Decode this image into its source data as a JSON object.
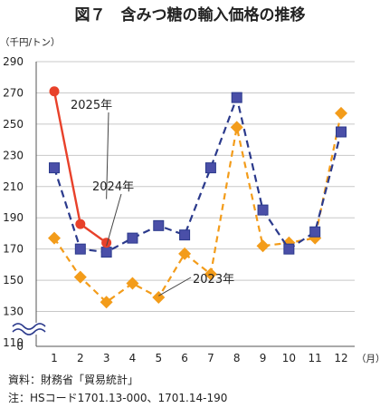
{
  "title": "図７　含みつ糖の輸入価格の推移",
  "source_note": "資料：財務省「貿易統計」",
  "remark_note": "注：HSコード1701.13-000、1701.14-190",
  "chart_data": {
    "type": "line",
    "title": "図７　含みつ糖の輸入価格の推移",
    "ylabel": "（千円/トン）",
    "xlabel": "（月）",
    "x": [
      1,
      2,
      3,
      4,
      5,
      6,
      7,
      8,
      9,
      10,
      11,
      12
    ],
    "x_tick_labels": [
      "1",
      "2",
      "3",
      "4",
      "5",
      "6",
      "7",
      "8",
      "9",
      "10",
      "11",
      "12"
    ],
    "y_tick_labels": [
      "0",
      "110",
      "130",
      "150",
      "170",
      "190",
      "210",
      "230",
      "250",
      "270",
      "290"
    ],
    "ylim": [
      110,
      290
    ],
    "y_axis_break": true,
    "grid": true,
    "series": [
      {
        "name": "2025年",
        "color": "#e8412a",
        "marker": "circle",
        "line": "solid",
        "values": [
          271,
          186,
          174,
          null,
          null,
          null,
          null,
          null,
          null,
          null,
          null,
          null
        ]
      },
      {
        "name": "2024年",
        "color": "#2b3a8c",
        "marker": "square",
        "line": "dashed",
        "values": [
          222,
          170,
          168,
          177,
          185,
          179,
          222,
          267,
          195,
          170,
          181,
          245
        ]
      },
      {
        "name": "2023年",
        "color": "#f39c1a",
        "marker": "diamond",
        "line": "dashed",
        "values": [
          177,
          152,
          136,
          148,
          139,
          167,
          154,
          248,
          172,
          174,
          177,
          257
        ]
      }
    ]
  }
}
